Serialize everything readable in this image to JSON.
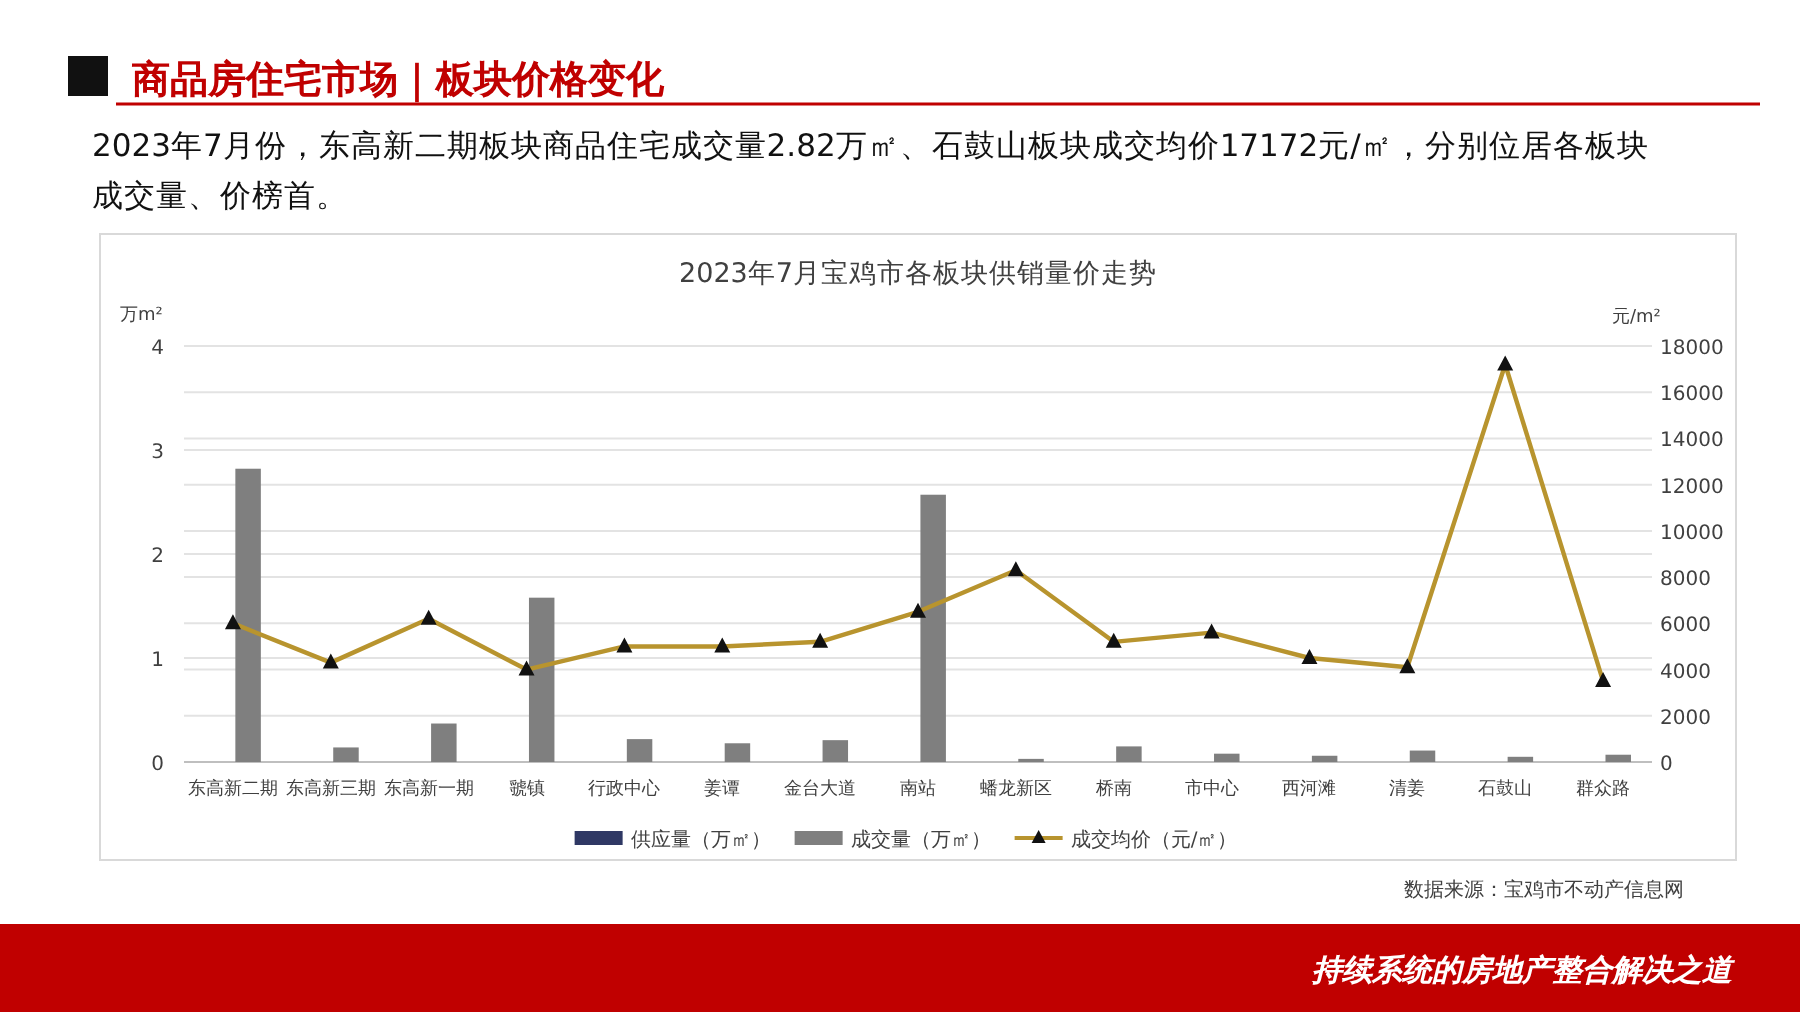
{
  "chart_data": {
    "type": "bar",
    "title": "2023年7月宝鸡市各板块供销量价走势",
    "annotations": [
      "商品房住宅市场｜板块价格变化",
      "2023年7月份，东高新二期板块商品住宅成交量2.82万㎡、石鼓山板块成交均价17172元/㎡，分别位居各板块成交量、价榜首。",
      "数据来源：宝鸡市不动产信息网",
      "持续系统的房地产整合解决之道"
    ],
    "ylabel": "万m²",
    "y2label": "元/m²",
    "categories": [
      "东高新二期",
      "东高新三期",
      "东高新一期",
      "虢镇",
      "行政中心",
      "姜谭",
      "金台大道",
      "南站",
      "蟠龙新区",
      "桥南",
      "市中心",
      "西河滩",
      "清姜",
      "石鼓山",
      "群众路"
    ],
    "series": [
      {
        "name": "供应量（万㎡）",
        "color": "#2f3864",
        "values": [
          null,
          null,
          null,
          null,
          null,
          null,
          null,
          null,
          null,
          null,
          null,
          null,
          null,
          null,
          null
        ]
      },
      {
        "name": "成交量（万㎡）",
        "color": "#7f7f7f",
        "values": [
          2.82,
          0.14,
          0.37,
          1.58,
          0.22,
          0.18,
          0.21,
          2.57,
          0.03,
          0.15,
          0.08,
          0.06,
          0.11,
          0.05,
          0.07
        ]
      },
      {
        "name": "成交均价（元/㎡）",
        "type": "line",
        "axis": "y2",
        "color": "#b8942e",
        "marker": "triangle",
        "values": [
          6000,
          4300,
          6200,
          4000,
          5000,
          5000,
          5200,
          6500,
          8300,
          5200,
          5600,
          4500,
          4100,
          17200,
          3500
        ]
      }
    ],
    "ylim": [
      0,
      4
    ],
    "yticks": [
      0,
      1,
      2,
      3,
      4
    ],
    "y2lim": [
      0,
      18000
    ],
    "y2ticks": [
      0,
      2000,
      4000,
      6000,
      8000,
      10000,
      12000,
      14000,
      16000,
      18000
    ],
    "grid": true,
    "legend": "bottom"
  }
}
